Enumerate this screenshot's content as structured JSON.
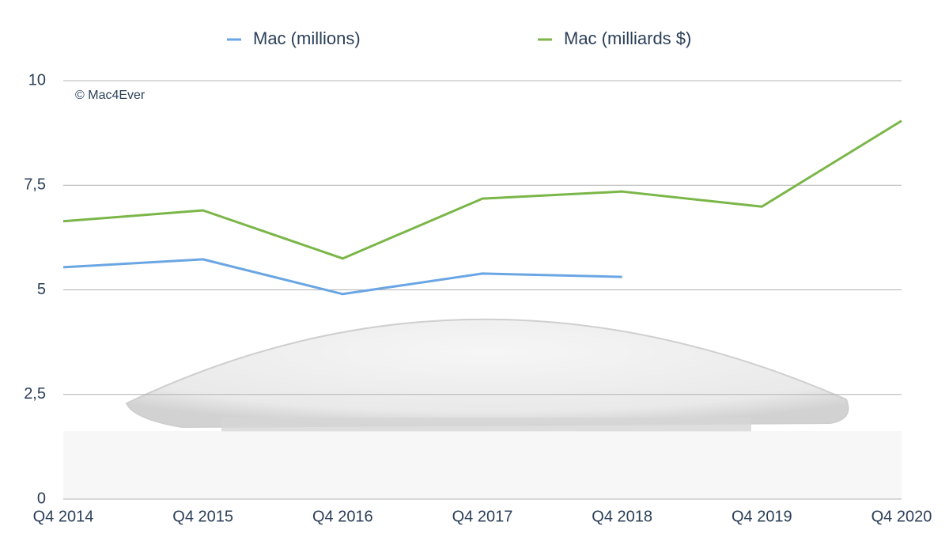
{
  "chart_data": {
    "type": "line",
    "categories": [
      "Q4 2014",
      "Q4 2015",
      "Q4 2016",
      "Q4 2017",
      "Q4 2018",
      "Q4 2019",
      "Q4 2020"
    ],
    "series": [
      {
        "name": "Mac (millions)",
        "color": "#6aa6e4",
        "values": [
          5.54,
          5.73,
          4.9,
          5.39,
          5.31,
          null,
          null
        ]
      },
      {
        "name": "Mac (milliards $)",
        "color": "#7ab648",
        "values": [
          6.64,
          6.9,
          5.75,
          7.18,
          7.35,
          6.99,
          9.04
        ]
      }
    ],
    "ylim": [
      0,
      10
    ],
    "yticks": [
      0,
      {
        "value": 2.5,
        "label": "2,5"
      },
      5,
      {
        "value": 7.5,
        "label": "7,5"
      },
      10
    ],
    "grid": true,
    "annotation": "© Mac4Ever"
  }
}
